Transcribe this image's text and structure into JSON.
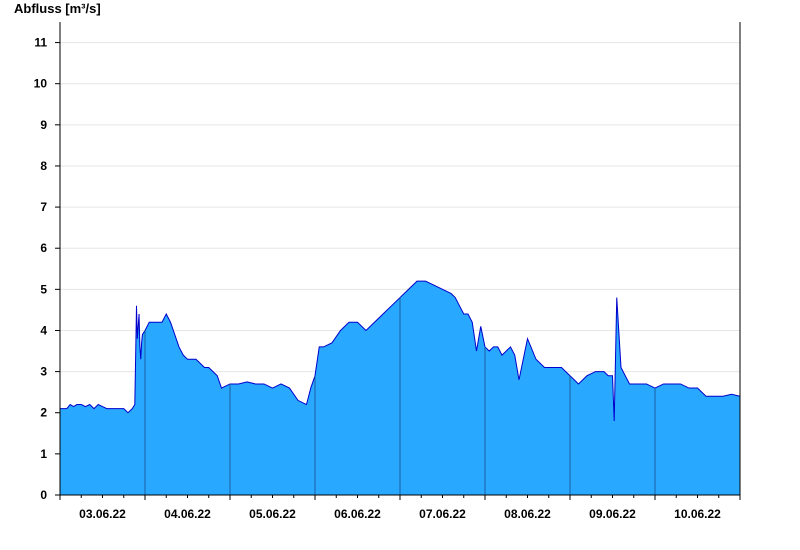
{
  "chart_data": {
    "type": "area",
    "title": "",
    "ylabel": "Abfluss [m³/s]",
    "xlabel": "",
    "ylim": [
      0,
      11.5
    ],
    "yticks": [
      0,
      1,
      2,
      3,
      4,
      5,
      6,
      7,
      8,
      9,
      10,
      11
    ],
    "x_range_days": [
      0,
      8
    ],
    "day_labels": [
      "03.06.22",
      "04.06.22",
      "05.06.22",
      "06.06.22",
      "07.06.22",
      "08.06.22",
      "09.06.22",
      "10.06.22"
    ],
    "grid": true,
    "fill_color": "#29a8ff",
    "line_color": "#0000cc",
    "series": [
      {
        "x": [
          0.0,
          0.08,
          0.12,
          0.16,
          0.2,
          0.25,
          0.3,
          0.35,
          0.4,
          0.45,
          0.5,
          0.55,
          0.6,
          0.65,
          0.7,
          0.75,
          0.8,
          0.85,
          0.88,
          0.9,
          0.91,
          0.93,
          0.94,
          0.95,
          0.96,
          0.97,
          1.0,
          1.05,
          1.1,
          1.15,
          1.2,
          1.25,
          1.3,
          1.35,
          1.4,
          1.45,
          1.5,
          1.55,
          1.6,
          1.65,
          1.7,
          1.75,
          1.8,
          1.85,
          1.9,
          2.0,
          2.1,
          2.2,
          2.3,
          2.4,
          2.5,
          2.6,
          2.7,
          2.8,
          2.9,
          2.95,
          3.0,
          3.05,
          3.1,
          3.2,
          3.3,
          3.4,
          3.5,
          3.6,
          3.7,
          3.8,
          3.9,
          4.0,
          4.1,
          4.2,
          4.3,
          4.4,
          4.5,
          4.6,
          4.65,
          4.7,
          4.75,
          4.8,
          4.85,
          4.9,
          4.95,
          5.0,
          5.05,
          5.1,
          5.15,
          5.2,
          5.25,
          5.3,
          5.35,
          5.4,
          5.45,
          5.5,
          5.6,
          5.7,
          5.8,
          5.9,
          6.0,
          6.1,
          6.2,
          6.3,
          6.4,
          6.45,
          6.47,
          6.48,
          6.5,
          6.52,
          6.55,
          6.6,
          6.7,
          6.8,
          6.9,
          7.0,
          7.1,
          7.2,
          7.3,
          7.4,
          7.5,
          7.6,
          7.7,
          7.8,
          7.9,
          8.0
        ],
        "y": [
          2.1,
          2.1,
          2.2,
          2.15,
          2.2,
          2.2,
          2.15,
          2.2,
          2.1,
          2.2,
          2.15,
          2.1,
          2.1,
          2.1,
          2.1,
          2.1,
          2.0,
          2.1,
          2.2,
          4.6,
          3.8,
          4.4,
          3.6,
          3.3,
          3.7,
          3.9,
          4.0,
          4.2,
          4.2,
          4.2,
          4.2,
          4.4,
          4.2,
          3.9,
          3.6,
          3.4,
          3.3,
          3.3,
          3.3,
          3.2,
          3.1,
          3.1,
          3.0,
          2.9,
          2.6,
          2.7,
          2.7,
          2.75,
          2.7,
          2.7,
          2.6,
          2.7,
          2.6,
          2.3,
          2.2,
          2.6,
          2.9,
          3.6,
          3.6,
          3.7,
          4.0,
          4.2,
          4.2,
          4.0,
          4.2,
          4.4,
          4.6,
          4.8,
          5.0,
          5.2,
          5.2,
          5.1,
          5.0,
          4.9,
          4.8,
          4.6,
          4.4,
          4.4,
          4.2,
          3.5,
          4.1,
          3.6,
          3.5,
          3.6,
          3.6,
          3.4,
          3.5,
          3.6,
          3.4,
          2.8,
          3.3,
          3.8,
          3.3,
          3.1,
          3.1,
          3.1,
          2.9,
          2.7,
          2.9,
          3.0,
          3.0,
          2.9,
          2.9,
          2.9,
          2.9,
          1.8,
          4.8,
          3.1,
          2.7,
          2.7,
          2.7,
          2.6,
          2.7,
          2.7,
          2.7,
          2.6,
          2.6,
          2.4,
          2.4,
          2.4,
          2.45,
          2.4
        ]
      }
    ]
  }
}
